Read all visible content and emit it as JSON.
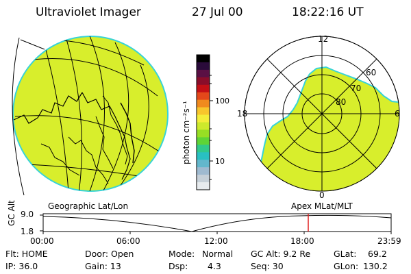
{
  "header": {
    "instrument": "Ultraviolet Imager",
    "date": "27 Jul 00",
    "time": "18:22:16 UT"
  },
  "colorbar": {
    "unit_label": "photon cm⁻²s⁻¹",
    "ticks": [
      "100",
      "10"
    ],
    "colors": [
      "#000000",
      "#2a0b3a",
      "#5a1044",
      "#8a0d2a",
      "#c40f15",
      "#e4481a",
      "#f08a1e",
      "#f8c62c",
      "#f4ee3a",
      "#cdea2c",
      "#97de24",
      "#5ed436",
      "#31c98a",
      "#29c0c2",
      "#63b7cc",
      "#9fbad0",
      "#c6d0d8",
      "#e7ebee"
    ]
  },
  "left_map": {
    "label": "Geographic Lat/Lon",
    "fill_color": "#d8ee2c"
  },
  "right_map": {
    "label": "Apex MLat/MLT",
    "mlt_labels": {
      "top": "12",
      "left": "18",
      "right": "6",
      "bottom": "0"
    },
    "lat_labels": [
      "60",
      "70",
      "80"
    ],
    "fill_color": "#d8ee2c"
  },
  "timeline": {
    "ylabel": "GC Alt",
    "y_top": "9.0",
    "y_bottom": "1.8",
    "x_ticks": [
      "00:00",
      "06:00",
      "12:00",
      "18:00",
      "23:59"
    ],
    "marker_color": "#e02020"
  },
  "info": {
    "flt": "Flt: HOME",
    "ip": "IP: 36.0",
    "door": "Door: Open",
    "gain": "Gain: 13",
    "mode_label": "Mode:",
    "mode_value": "Normal",
    "dsp_label": "Dsp:",
    "dsp_value": "4.3",
    "gcalt": "GC Alt: 9.2 Re",
    "seq": "Seq: 30",
    "glat": "GLat:",
    "glat_value": "69.2",
    "glon": "GLon:",
    "glon_value": "130.2"
  }
}
